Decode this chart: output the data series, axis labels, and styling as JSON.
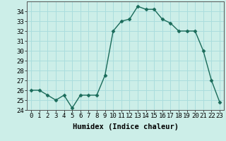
{
  "x": [
    0,
    1,
    2,
    3,
    4,
    5,
    6,
    7,
    8,
    9,
    10,
    11,
    12,
    13,
    14,
    15,
    16,
    17,
    18,
    19,
    20,
    21,
    22,
    23
  ],
  "y": [
    26,
    26,
    25.5,
    25,
    25.5,
    24.2,
    25.5,
    25.5,
    25.5,
    27.5,
    32,
    33,
    33.2,
    34.5,
    34.2,
    34.2,
    33.2,
    32.8,
    32,
    32,
    32,
    30,
    27,
    24.8
  ],
  "line_color": "#1a6b5a",
  "marker": "D",
  "marker_size": 2.5,
  "bg_color": "#cceee8",
  "grid_color": "#aadddd",
  "xlabel": "Humidex (Indice chaleur)",
  "xlim": [
    -0.5,
    23.5
  ],
  "ylim": [
    24,
    35
  ],
  "yticks": [
    24,
    25,
    26,
    27,
    28,
    29,
    30,
    31,
    32,
    33,
    34
  ],
  "xticks": [
    0,
    1,
    2,
    3,
    4,
    5,
    6,
    7,
    8,
    9,
    10,
    11,
    12,
    13,
    14,
    15,
    16,
    17,
    18,
    19,
    20,
    21,
    22,
    23
  ],
  "tick_label_fontsize": 6.5,
  "xlabel_fontsize": 7.5
}
